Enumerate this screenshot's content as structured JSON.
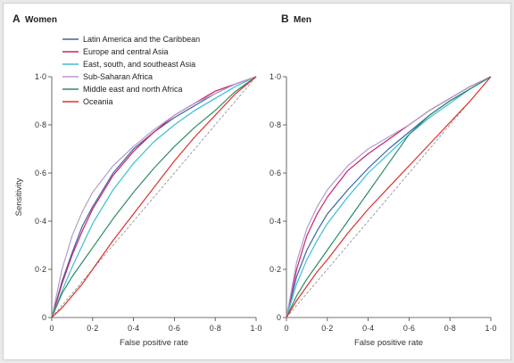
{
  "chart_data": [
    {
      "type": "line",
      "panel": "A",
      "title": "Women",
      "xlabel": "False positive rate",
      "ylabel": "Sensitivity",
      "xlim": [
        0,
        1
      ],
      "ylim": [
        0,
        1
      ],
      "x_ticks": [
        "0",
        "0·2",
        "0·4",
        "0·6",
        "0·8",
        "1·0"
      ],
      "y_ticks": [
        "0",
        "0·2",
        "0·4",
        "0·6",
        "0·8",
        "1·0"
      ],
      "legend_position": "top-left",
      "diagonal_reference": true,
      "series": [
        {
          "name": "Latin America and the Caribbean",
          "color": "#3b64a8",
          "x": [
            0,
            0.05,
            0.1,
            0.15,
            0.2,
            0.3,
            0.4,
            0.5,
            0.6,
            0.7,
            0.8,
            0.9,
            1
          ],
          "y": [
            0,
            0.15,
            0.27,
            0.38,
            0.46,
            0.6,
            0.7,
            0.77,
            0.83,
            0.88,
            0.93,
            0.97,
            1
          ]
        },
        {
          "name": "Europe and central Asia",
          "color": "#c8236b",
          "x": [
            0,
            0.05,
            0.1,
            0.15,
            0.2,
            0.3,
            0.4,
            0.5,
            0.6,
            0.7,
            0.8,
            0.9,
            1
          ],
          "y": [
            0,
            0.14,
            0.26,
            0.36,
            0.45,
            0.59,
            0.69,
            0.77,
            0.84,
            0.89,
            0.94,
            0.97,
            1
          ]
        },
        {
          "name": "East, south, and southeast Asia",
          "color": "#3cbdd4",
          "x": [
            0,
            0.05,
            0.1,
            0.15,
            0.2,
            0.3,
            0.4,
            0.5,
            0.6,
            0.7,
            0.8,
            0.9,
            1
          ],
          "y": [
            0,
            0.11,
            0.21,
            0.3,
            0.39,
            0.53,
            0.64,
            0.73,
            0.8,
            0.86,
            0.91,
            0.96,
            1
          ]
        },
        {
          "name": "Sub-Saharan Africa",
          "color": "#b59ccc",
          "x": [
            0,
            0.05,
            0.1,
            0.15,
            0.2,
            0.3,
            0.4,
            0.5,
            0.6,
            0.7,
            0.8,
            0.9,
            1
          ],
          "y": [
            0,
            0.2,
            0.34,
            0.44,
            0.52,
            0.63,
            0.71,
            0.78,
            0.84,
            0.89,
            0.93,
            0.97,
            1
          ]
        },
        {
          "name": "Middle east and north Africa",
          "color": "#2f8a63",
          "x": [
            0,
            0.05,
            0.1,
            0.15,
            0.2,
            0.3,
            0.4,
            0.5,
            0.6,
            0.7,
            0.8,
            0.9,
            1
          ],
          "y": [
            0,
            0.1,
            0.17,
            0.23,
            0.29,
            0.41,
            0.52,
            0.62,
            0.71,
            0.79,
            0.86,
            0.94,
            1
          ]
        },
        {
          "name": "Oceania",
          "color": "#d8322c",
          "x": [
            0,
            0.05,
            0.1,
            0.15,
            0.2,
            0.3,
            0.4,
            0.5,
            0.6,
            0.7,
            0.8,
            0.9,
            1
          ],
          "y": [
            0,
            0.04,
            0.09,
            0.14,
            0.2,
            0.32,
            0.43,
            0.54,
            0.65,
            0.75,
            0.84,
            0.93,
            1
          ]
        }
      ]
    },
    {
      "type": "line",
      "panel": "B",
      "title": "Men",
      "xlabel": "False positive rate",
      "ylabel": "",
      "xlim": [
        0,
        1
      ],
      "ylim": [
        0,
        1
      ],
      "x_ticks": [
        "0",
        "0·2",
        "0·4",
        "0·6",
        "0·8",
        "1·0"
      ],
      "y_ticks": [
        "0",
        "0·2",
        "0·4",
        "0·6",
        "0·8",
        "1·0"
      ],
      "diagonal_reference": true,
      "series": [
        {
          "name": "Latin America and the Caribbean",
          "color": "#3b64a8",
          "x": [
            0,
            0.05,
            0.1,
            0.15,
            0.2,
            0.3,
            0.4,
            0.5,
            0.6,
            0.7,
            0.8,
            0.9,
            1
          ],
          "y": [
            0,
            0.17,
            0.28,
            0.36,
            0.43,
            0.53,
            0.62,
            0.7,
            0.77,
            0.84,
            0.9,
            0.95,
            1
          ]
        },
        {
          "name": "Europe and central Asia",
          "color": "#c8236b",
          "x": [
            0,
            0.05,
            0.1,
            0.15,
            0.2,
            0.3,
            0.4,
            0.5,
            0.6,
            0.7,
            0.8,
            0.9,
            1
          ],
          "y": [
            0,
            0.2,
            0.34,
            0.43,
            0.5,
            0.61,
            0.68,
            0.74,
            0.8,
            0.86,
            0.91,
            0.96,
            1
          ]
        },
        {
          "name": "East, south, and southeast Asia",
          "color": "#3cbdd4",
          "x": [
            0,
            0.05,
            0.1,
            0.15,
            0.2,
            0.3,
            0.4,
            0.5,
            0.6,
            0.7,
            0.8,
            0.9,
            1
          ],
          "y": [
            0,
            0.14,
            0.24,
            0.32,
            0.39,
            0.5,
            0.6,
            0.68,
            0.76,
            0.83,
            0.89,
            0.95,
            1
          ]
        },
        {
          "name": "Sub-Saharan Africa",
          "color": "#b59ccc",
          "x": [
            0,
            0.05,
            0.1,
            0.15,
            0.2,
            0.3,
            0.4,
            0.5,
            0.6,
            0.7,
            0.8,
            0.9,
            1
          ],
          "y": [
            0,
            0.23,
            0.37,
            0.46,
            0.53,
            0.63,
            0.7,
            0.75,
            0.8,
            0.86,
            0.91,
            0.96,
            1
          ]
        },
        {
          "name": "Middle east and north Africa",
          "color": "#2f8a63",
          "x": [
            0,
            0.05,
            0.1,
            0.15,
            0.2,
            0.3,
            0.4,
            0.5,
            0.6,
            0.7,
            0.8,
            0.9,
            1
          ],
          "y": [
            0,
            0.09,
            0.16,
            0.22,
            0.28,
            0.4,
            0.52,
            0.64,
            0.76,
            0.84,
            0.9,
            0.95,
            1
          ]
        },
        {
          "name": "Oceania",
          "color": "#d8322c",
          "x": [
            0,
            0.05,
            0.1,
            0.15,
            0.2,
            0.3,
            0.4,
            0.5,
            0.6,
            0.7,
            0.8,
            0.9,
            1
          ],
          "y": [
            0,
            0.07,
            0.13,
            0.19,
            0.24,
            0.35,
            0.45,
            0.54,
            0.63,
            0.72,
            0.81,
            0.9,
            1
          ]
        }
      ]
    }
  ]
}
